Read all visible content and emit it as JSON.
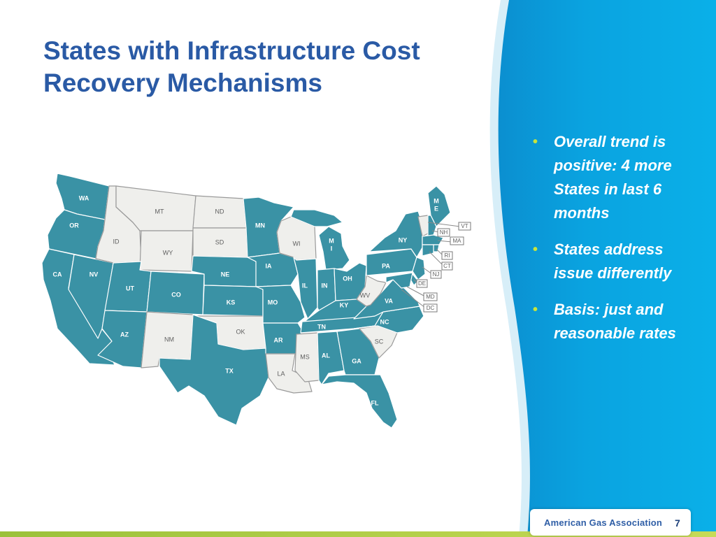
{
  "slide": {
    "title_line1": "States with Infrastructure Cost",
    "title_line2": "Recovery Mechanisms",
    "page_number": "7",
    "logo_text": "American Gas Association"
  },
  "bullets": [
    "Overall trend is positive: 4 more States in last 6 months",
    "States address issue differently",
    "Basis: just and reasonable rates"
  ],
  "colors": {
    "mechanism": "#3a92a5",
    "no_mechanism": "#efefec",
    "panel_blue": "#0aa0dc",
    "title_blue": "#2a5aa5",
    "bullet_green": "#c8e43c",
    "footer_green": "#9bc13a"
  },
  "map": {
    "states": [
      {
        "code": "WA",
        "has_mechanism": true
      },
      {
        "code": "OR",
        "has_mechanism": true
      },
      {
        "code": "CA",
        "has_mechanism": true
      },
      {
        "code": "NV",
        "has_mechanism": true
      },
      {
        "code": "ID",
        "has_mechanism": false
      },
      {
        "code": "MT",
        "has_mechanism": false
      },
      {
        "code": "WY",
        "has_mechanism": false
      },
      {
        "code": "UT",
        "has_mechanism": true
      },
      {
        "code": "AZ",
        "has_mechanism": true
      },
      {
        "code": "CO",
        "has_mechanism": true
      },
      {
        "code": "NM",
        "has_mechanism": false
      },
      {
        "code": "ND",
        "has_mechanism": false
      },
      {
        "code": "SD",
        "has_mechanism": false
      },
      {
        "code": "NE",
        "has_mechanism": true
      },
      {
        "code": "KS",
        "has_mechanism": true
      },
      {
        "code": "OK",
        "has_mechanism": false
      },
      {
        "code": "TX",
        "has_mechanism": true
      },
      {
        "code": "MN",
        "has_mechanism": true
      },
      {
        "code": "IA",
        "has_mechanism": true
      },
      {
        "code": "MO",
        "has_mechanism": true
      },
      {
        "code": "AR",
        "has_mechanism": true
      },
      {
        "code": "LA",
        "has_mechanism": false
      },
      {
        "code": "WI",
        "has_mechanism": false
      },
      {
        "code": "IL",
        "has_mechanism": true
      },
      {
        "code": "MI",
        "has_mechanism": true
      },
      {
        "code": "IN",
        "has_mechanism": true
      },
      {
        "code": "OH",
        "has_mechanism": true
      },
      {
        "code": "KY",
        "has_mechanism": true
      },
      {
        "code": "TN",
        "has_mechanism": true
      },
      {
        "code": "MS",
        "has_mechanism": false
      },
      {
        "code": "AL",
        "has_mechanism": true
      },
      {
        "code": "GA",
        "has_mechanism": true
      },
      {
        "code": "FL",
        "has_mechanism": true
      },
      {
        "code": "SC",
        "has_mechanism": false
      },
      {
        "code": "NC",
        "has_mechanism": true
      },
      {
        "code": "VA",
        "has_mechanism": true
      },
      {
        "code": "WV",
        "has_mechanism": false
      },
      {
        "code": "PA",
        "has_mechanism": true
      },
      {
        "code": "NY",
        "has_mechanism": true
      },
      {
        "code": "ME",
        "has_mechanism": true
      },
      {
        "code": "VT",
        "has_mechanism": false
      },
      {
        "code": "NH",
        "has_mechanism": true
      },
      {
        "code": "MA",
        "has_mechanism": true
      },
      {
        "code": "RI",
        "has_mechanism": true
      },
      {
        "code": "CT",
        "has_mechanism": true
      },
      {
        "code": "NJ",
        "has_mechanism": true
      },
      {
        "code": "DE",
        "has_mechanism": true
      },
      {
        "code": "MD",
        "has_mechanism": true
      },
      {
        "code": "DC",
        "has_mechanism": true
      }
    ],
    "labels": {
      "WA": "WA",
      "OR": "OR",
      "CA": "CA",
      "NV": "NV",
      "ID": "ID",
      "MT": "MT",
      "WY": "WY",
      "UT": "UT",
      "AZ": "AZ",
      "CO": "CO",
      "NM": "NM",
      "ND": "ND",
      "SD": "SD",
      "NE": "NE",
      "KS": "KS",
      "OK": "OK",
      "TX": "TX",
      "MN": "MN",
      "IA": "IA",
      "MO": "MO",
      "AR": "AR",
      "LA": "LA",
      "WI": "WI",
      "IL": "IL",
      "MI_1": "M",
      "MI_2": "I",
      "IN": "IN",
      "OH": "OH",
      "KY": "KY",
      "TN": "TN",
      "MS": "MS",
      "AL": "AL",
      "GA": "GA",
      "FL": "FL",
      "SC": "SC",
      "NC": "NC",
      "VA": "VA",
      "WV": "WV",
      "PA": "PA",
      "NY": "NY",
      "ME_1": "M",
      "ME_2": "E",
      "VT": "VT",
      "NH": "NH",
      "MA": "MA",
      "RI": "RI",
      "CT": "CT",
      "NJ": "NJ",
      "DE": "DE",
      "MD": "MD",
      "DC": "DC"
    }
  }
}
